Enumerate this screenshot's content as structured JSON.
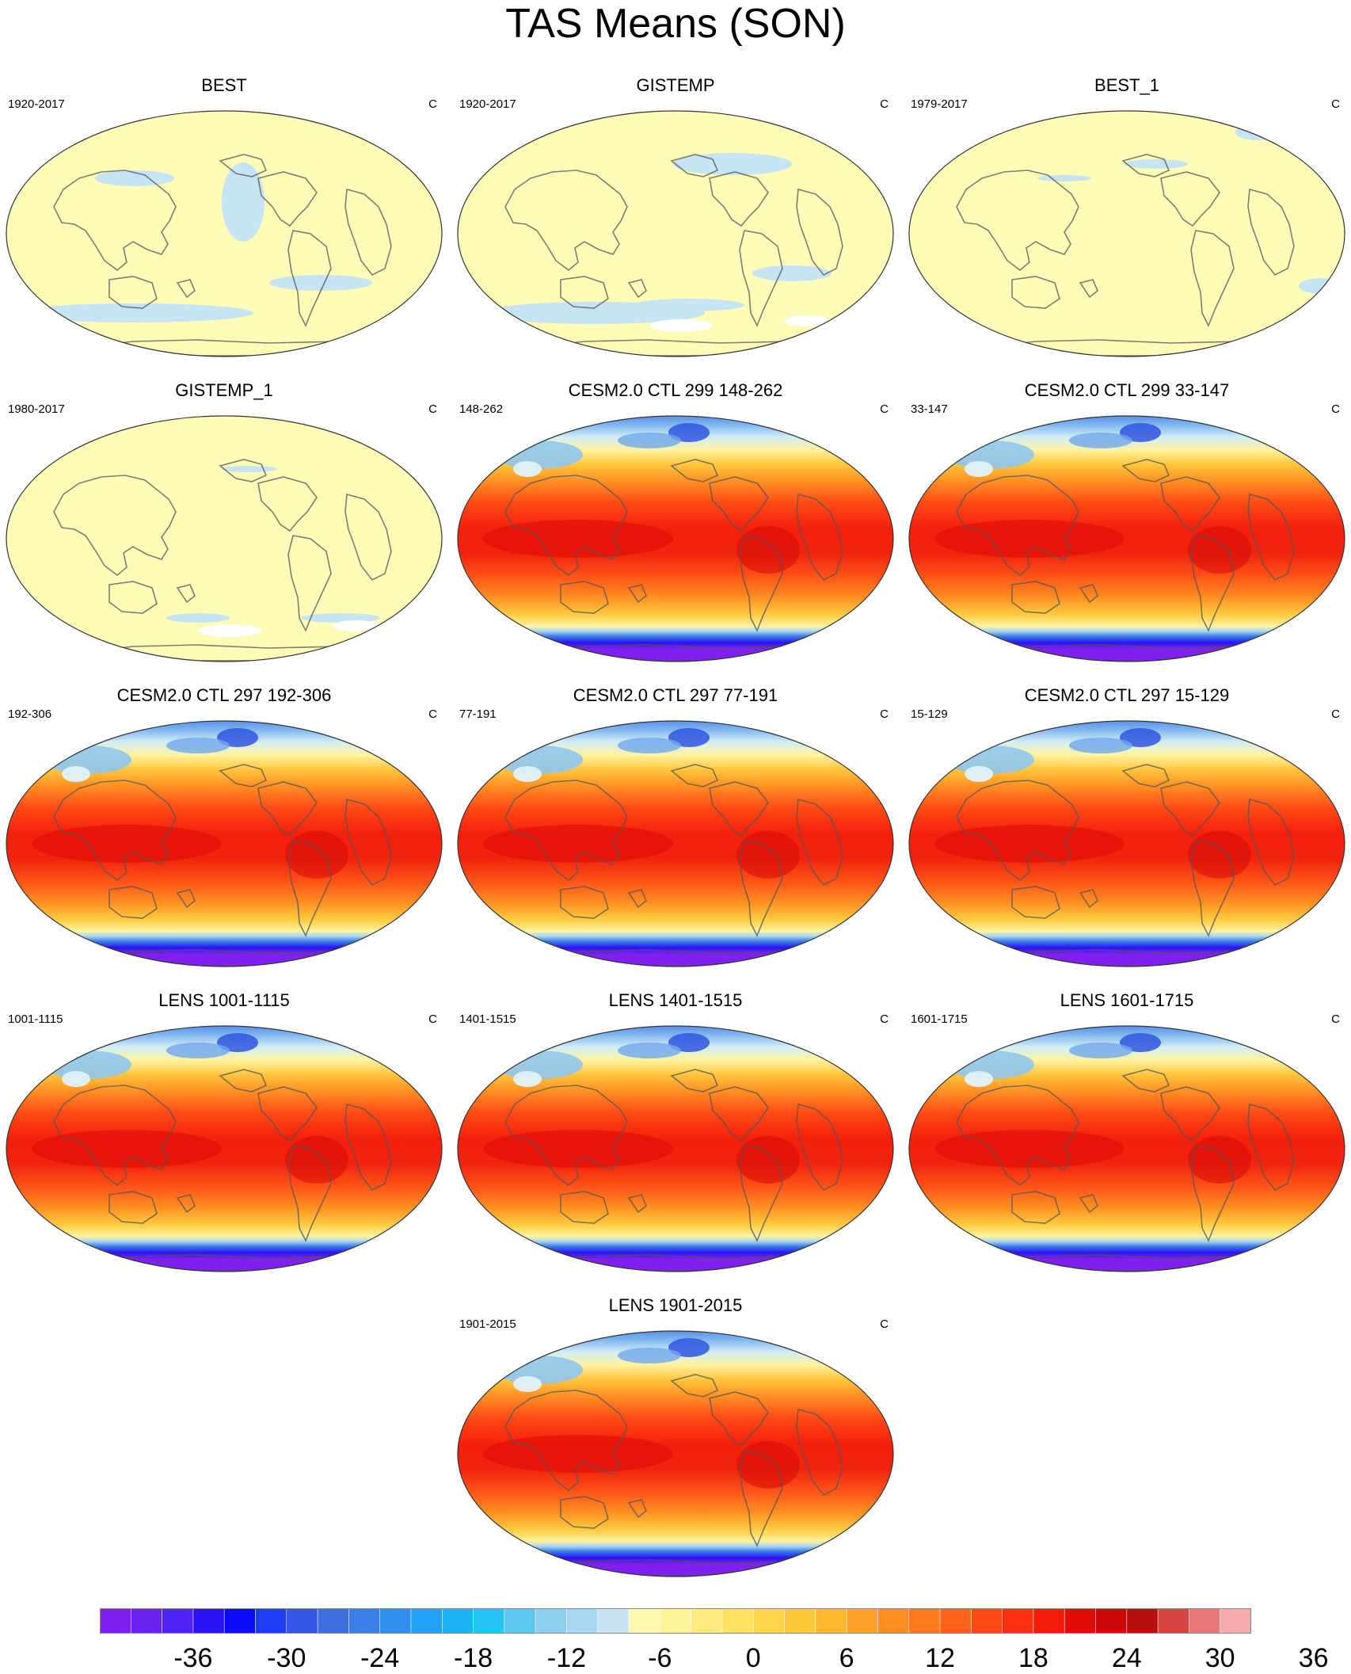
{
  "title": "TAS Means (SON)",
  "panels": [
    {
      "title": "BEST",
      "period": "1920-2017",
      "units": "C",
      "style": "obs-a"
    },
    {
      "title": "GISTEMP",
      "period": "1920-2017",
      "units": "C",
      "style": "obs-b"
    },
    {
      "title": "BEST_1",
      "period": "1979-2017",
      "units": "C",
      "style": "obs-c"
    },
    {
      "title": "GISTEMP_1",
      "period": "1980-2017",
      "units": "C",
      "style": "obs-d"
    },
    {
      "title": "CESM2.0 CTL 299 148-262",
      "period": "148-262",
      "units": "C",
      "style": "model"
    },
    {
      "title": "CESM2.0 CTL 299 33-147",
      "period": "33-147",
      "units": "C",
      "style": "model"
    },
    {
      "title": "CESM2.0 CTL 297 192-306",
      "period": "192-306",
      "units": "C",
      "style": "model"
    },
    {
      "title": "CESM2.0 CTL 297 77-191",
      "period": "77-191",
      "units": "C",
      "style": "model"
    },
    {
      "title": "CESM2.0 CTL 297 15-129",
      "period": "15-129",
      "units": "C",
      "style": "model"
    },
    {
      "title": "LENS 1001-1115",
      "period": "1001-1115",
      "units": "C",
      "style": "model"
    },
    {
      "title": "LENS 1401-1515",
      "period": "1401-1515",
      "units": "C",
      "style": "model"
    },
    {
      "title": "LENS 1601-1715",
      "period": "1601-1715",
      "units": "C",
      "style": "model"
    },
    {
      "title": "LENS 1901-2015",
      "period": "1901-2015",
      "units": "C",
      "style": "model"
    }
  ],
  "colorbar": {
    "labels": [
      "-36",
      "-30",
      "-24",
      "-18",
      "-12",
      "-6",
      "0",
      "6",
      "12",
      "18",
      "24",
      "30",
      "36"
    ],
    "colors": [
      "#7f1ff0",
      "#6a22ee",
      "#4e23f4",
      "#2a14f6",
      "#0a0cf8",
      "#1f3df2",
      "#3556e8",
      "#3f6ee0",
      "#3a7ee6",
      "#2f8ff0",
      "#22a0f4",
      "#1eb2f6",
      "#26c3f8",
      "#5ac8f0",
      "#8dcdee",
      "#a9d6f2",
      "#c8e4f3",
      "#fff9b0",
      "#fff39a",
      "#ffeb7d",
      "#ffe264",
      "#ffd54a",
      "#ffc838",
      "#ffb52e",
      "#ffa228",
      "#ff8e22",
      "#ff7a1e",
      "#ff621a",
      "#ff4a16",
      "#fd2f10",
      "#f41a0a",
      "#e00c08",
      "#cc0a0a",
      "#b81010",
      "#d84444",
      "#ea7878",
      "#f6aaaa"
    ],
    "min": -42,
    "step": 2
  }
}
